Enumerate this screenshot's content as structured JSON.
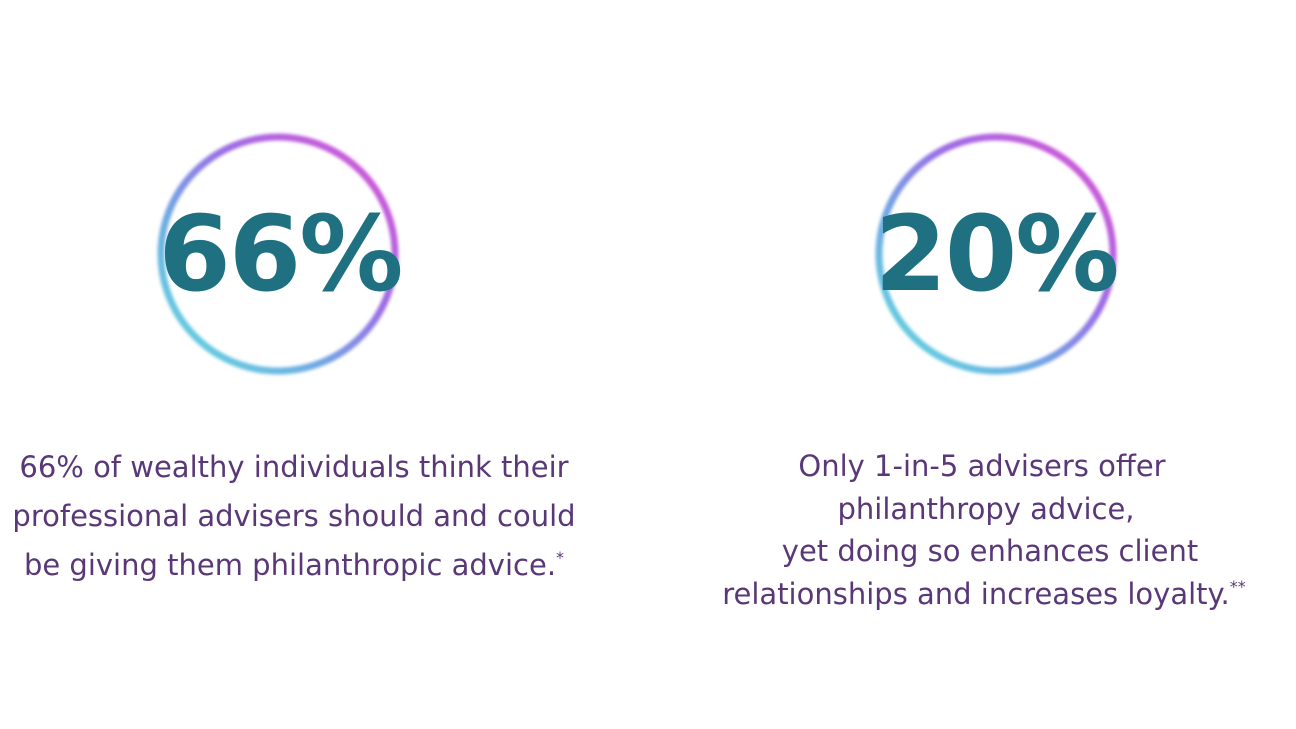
{
  "stats": [
    {
      "figure": "66%",
      "lines": [
        "66% of wealthy individuals think their",
        "professional advisers should and could",
        "be giving them philanthropic advice."
      ],
      "note": "*"
    },
    {
      "figure": "20%",
      "lines": [
        "Only 1-in-5 advisers offer",
        "philanthropy advice,",
        "yet doing so enhances client",
        "relationships and increases loyalty."
      ],
      "note": "**"
    }
  ]
}
